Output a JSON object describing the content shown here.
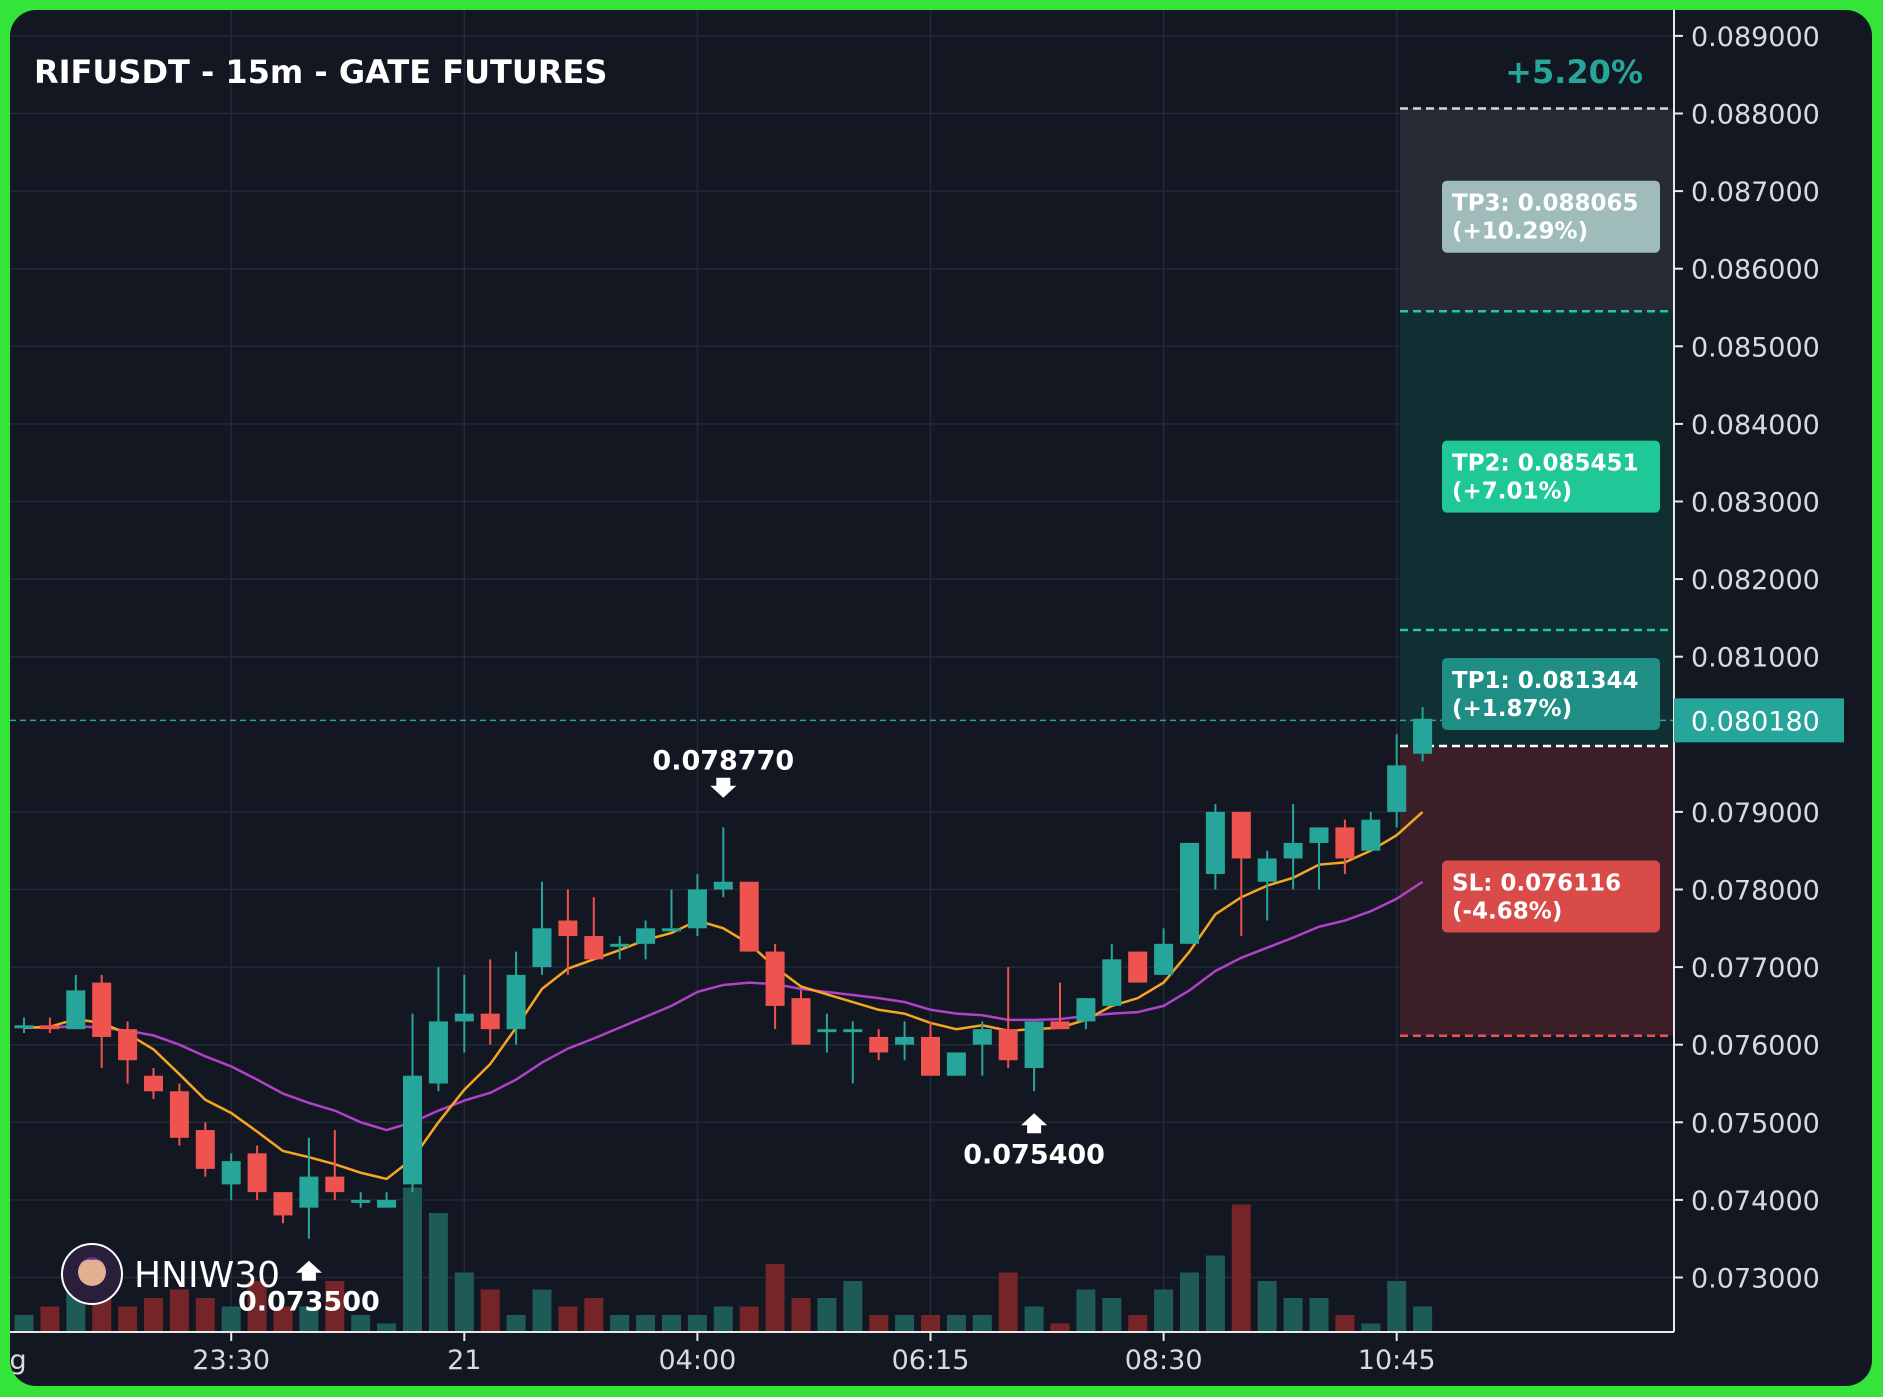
{
  "title": "RIFUSDT - 15m - GATE FUTURES",
  "change_label": "+5.20%",
  "watermark": "HNIW30",
  "colors": {
    "up": "#26a69a",
    "down": "#ef5350",
    "ema_fast": "#f5a623",
    "ema_slow": "#b041c9",
    "tp_zone": "#0f2f32",
    "tp3_zone": "#262b36",
    "sl_zone": "#3a1f28",
    "frame": "#35e43a"
  },
  "chart_data": {
    "type": "candlestick",
    "ylim": [
      0.0723,
      0.0893
    ],
    "y_ticks": [
      "0.089000",
      "0.088000",
      "0.087000",
      "0.086000",
      "0.085000",
      "0.084000",
      "0.083000",
      "0.082000",
      "0.081000",
      "0.079000",
      "0.078000",
      "0.077000",
      "0.076000",
      "0.075000",
      "0.074000",
      "0.073000"
    ],
    "y_tick_values": [
      0.089,
      0.088,
      0.087,
      0.086,
      0.085,
      0.084,
      0.083,
      0.082,
      0.081,
      0.079,
      0.078,
      0.077,
      0.076,
      0.075,
      0.074,
      0.073
    ],
    "x_ticks": [
      {
        "label": "g",
        "index": -0.35
      },
      {
        "label": "23:30",
        "index": 8
      },
      {
        "label": "21",
        "index": 17
      },
      {
        "label": "04:00",
        "index": 26
      },
      {
        "label": "06:15",
        "index": 35
      },
      {
        "label": "08:30",
        "index": 44
      },
      {
        "label": "10:45",
        "index": 53
      }
    ],
    "candles": [
      [
        0.07625,
        0.07635,
        0.07615,
        0.07625
      ],
      [
        0.07625,
        0.07635,
        0.07615,
        0.0762
      ],
      [
        0.0762,
        0.0769,
        0.0762,
        0.0767
      ],
      [
        0.0768,
        0.0769,
        0.0757,
        0.0761
      ],
      [
        0.0762,
        0.0763,
        0.0755,
        0.0758
      ],
      [
        0.0756,
        0.0757,
        0.0753,
        0.0754
      ],
      [
        0.0754,
        0.0755,
        0.0747,
        0.0748
      ],
      [
        0.0749,
        0.075,
        0.0743,
        0.0744
      ],
      [
        0.0742,
        0.0746,
        0.074,
        0.0745
      ],
      [
        0.0746,
        0.0747,
        0.074,
        0.0741
      ],
      [
        0.0741,
        0.0741,
        0.0737,
        0.0738
      ],
      [
        0.0739,
        0.0748,
        0.0735,
        0.0743
      ],
      [
        0.0743,
        0.0749,
        0.074,
        0.0741
      ],
      [
        0.074,
        0.0741,
        0.0739,
        0.074
      ],
      [
        0.0739,
        0.0741,
        0.0739,
        0.074
      ],
      [
        0.0742,
        0.0764,
        0.0741,
        0.0756
      ],
      [
        0.0755,
        0.077,
        0.0754,
        0.0763
      ],
      [
        0.0763,
        0.0769,
        0.0759,
        0.0764
      ],
      [
        0.0764,
        0.0771,
        0.076,
        0.0762
      ],
      [
        0.0762,
        0.0772,
        0.076,
        0.0769
      ],
      [
        0.077,
        0.0781,
        0.0769,
        0.0775
      ],
      [
        0.0776,
        0.078,
        0.0769,
        0.0774
      ],
      [
        0.0774,
        0.0779,
        0.0771,
        0.0771
      ],
      [
        0.0773,
        0.0774,
        0.0771,
        0.0773
      ],
      [
        0.0773,
        0.0776,
        0.0771,
        0.0775
      ],
      [
        0.0775,
        0.078,
        0.0775,
        0.0775
      ],
      [
        0.0775,
        0.0782,
        0.0774,
        0.078
      ],
      [
        0.078,
        0.0788,
        0.0779,
        0.0781
      ],
      [
        0.0781,
        0.0781,
        0.0772,
        0.0772
      ],
      [
        0.0772,
        0.0773,
        0.0762,
        0.0765
      ],
      [
        0.0766,
        0.0767,
        0.076,
        0.076
      ],
      [
        0.0762,
        0.0764,
        0.0759,
        0.0762
      ],
      [
        0.0762,
        0.0763,
        0.0755,
        0.0762
      ],
      [
        0.0761,
        0.0762,
        0.0758,
        0.0759
      ],
      [
        0.076,
        0.0763,
        0.0758,
        0.0761
      ],
      [
        0.0761,
        0.0763,
        0.0756,
        0.0756
      ],
      [
        0.0756,
        0.0759,
        0.0756,
        0.0759
      ],
      [
        0.076,
        0.0763,
        0.0756,
        0.0762
      ],
      [
        0.0762,
        0.077,
        0.0757,
        0.0758
      ],
      [
        0.0757,
        0.0763,
        0.0754,
        0.0763
      ],
      [
        0.0763,
        0.0768,
        0.0762,
        0.0762
      ],
      [
        0.0763,
        0.0766,
        0.0762,
        0.0766
      ],
      [
        0.0765,
        0.0773,
        0.0765,
        0.0771
      ],
      [
        0.0772,
        0.0772,
        0.0768,
        0.0768
      ],
      [
        0.0769,
        0.0775,
        0.0769,
        0.0773
      ],
      [
        0.0773,
        0.0786,
        0.0773,
        0.0786
      ],
      [
        0.0782,
        0.0791,
        0.078,
        0.079
      ],
      [
        0.079,
        0.079,
        0.0774,
        0.0784
      ],
      [
        0.0781,
        0.0785,
        0.0776,
        0.0784
      ],
      [
        0.0784,
        0.0791,
        0.078,
        0.0786
      ],
      [
        0.0786,
        0.0788,
        0.078,
        0.0788
      ],
      [
        0.0788,
        0.0789,
        0.0782,
        0.0784
      ],
      [
        0.0785,
        0.079,
        0.0785,
        0.0789
      ],
      [
        0.079,
        0.08,
        0.0788,
        0.0796
      ],
      [
        0.07975,
        0.08035,
        0.07965,
        0.0802
      ]
    ],
    "volumes": [
      2,
      3,
      5,
      4,
      3,
      4,
      5,
      4,
      3,
      6,
      3,
      3,
      6,
      2,
      1,
      17,
      14,
      7,
      5,
      2,
      5,
      3,
      4,
      2,
      2,
      2,
      2,
      3,
      3,
      8,
      4,
      4,
      6,
      2,
      2,
      2,
      2,
      2,
      7,
      3,
      1,
      5,
      4,
      2,
      5,
      7,
      9,
      15,
      6,
      4,
      4,
      2,
      1,
      6,
      3
    ],
    "ema_fast": [
      0.07622,
      0.07623,
      0.07633,
      0.07628,
      0.07614,
      0.07594,
      0.07562,
      0.07529,
      0.07512,
      0.07488,
      0.07463,
      0.07455,
      0.07446,
      0.07435,
      0.07427,
      0.07453,
      0.075,
      0.07542,
      0.07575,
      0.07622,
      0.07672,
      0.07698,
      0.0771,
      0.07722,
      0.07735,
      0.07744,
      0.0776,
      0.0775,
      0.0773,
      0.077,
      0.07675,
      0.07665,
      0.07655,
      0.07645,
      0.0764,
      0.07628,
      0.0762,
      0.07625,
      0.07618,
      0.0762,
      0.07622,
      0.07632,
      0.0765,
      0.0766,
      0.0768,
      0.0772,
      0.07768,
      0.0779,
      0.07805,
      0.07815,
      0.07832,
      0.07835,
      0.0785,
      0.0787,
      0.079
    ],
    "ema_slow": [
      0.07622,
      0.07622,
      0.07624,
      0.07622,
      0.07618,
      0.07612,
      0.076,
      0.07585,
      0.07572,
      0.07555,
      0.07537,
      0.07525,
      0.07515,
      0.075,
      0.0749,
      0.075,
      0.07515,
      0.07528,
      0.07538,
      0.07555,
      0.07577,
      0.07595,
      0.07608,
      0.07622,
      0.07636,
      0.0765,
      0.07668,
      0.07677,
      0.0768,
      0.07678,
      0.07672,
      0.07668,
      0.07664,
      0.0766,
      0.07655,
      0.07645,
      0.0764,
      0.07638,
      0.07632,
      0.07632,
      0.07633,
      0.07637,
      0.0764,
      0.07642,
      0.0765,
      0.0767,
      0.07695,
      0.07712,
      0.07725,
      0.07738,
      0.07752,
      0.0776,
      0.07772,
      0.07788,
      0.0781
    ],
    "annotations": [
      {
        "label": "0.078770",
        "index": 27,
        "price": 0.07877,
        "arrow": "down"
      },
      {
        "label": "0.075400",
        "index": 39,
        "price": 0.0754,
        "arrow": "up"
      },
      {
        "label": "0.073500",
        "index": 11,
        "price": 0.0735,
        "arrow": "up"
      }
    ],
    "current_price": {
      "value": 0.08018,
      "label": "0.080180"
    },
    "entry": 0.07985,
    "targets": [
      {
        "label": "TP1: 0.081344",
        "pct": "(+1.87%)",
        "price": 0.081344
      },
      {
        "label": "TP2: 0.085451",
        "pct": "(+7.01%)",
        "price": 0.085451
      },
      {
        "label": "TP3: 0.088065",
        "pct": "(+10.29%)",
        "price": 0.088065
      }
    ],
    "stop_loss": {
      "label": "SL: 0.076116",
      "pct": "(-4.68%)",
      "price": 0.076116
    }
  }
}
